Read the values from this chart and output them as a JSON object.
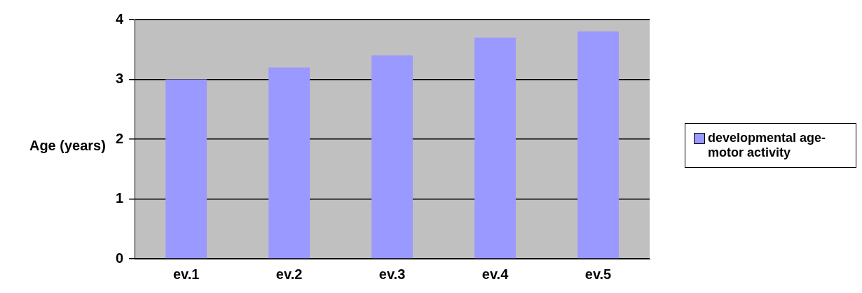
{
  "chart_data": {
    "type": "bar",
    "ylabel": "Age (years)",
    "categories": [
      "ev.1",
      "ev.2",
      "ev.3",
      "ev.4",
      "ev.5"
    ],
    "series": [
      {
        "name": "developmental age-motor activity",
        "color": "#9999ff",
        "values": [
          3.0,
          3.2,
          3.4,
          3.7,
          3.8
        ]
      }
    ],
    "ylim": [
      0,
      4
    ],
    "yticks": [
      0,
      1,
      2,
      3,
      4
    ],
    "grid": "y",
    "legend": "right"
  }
}
